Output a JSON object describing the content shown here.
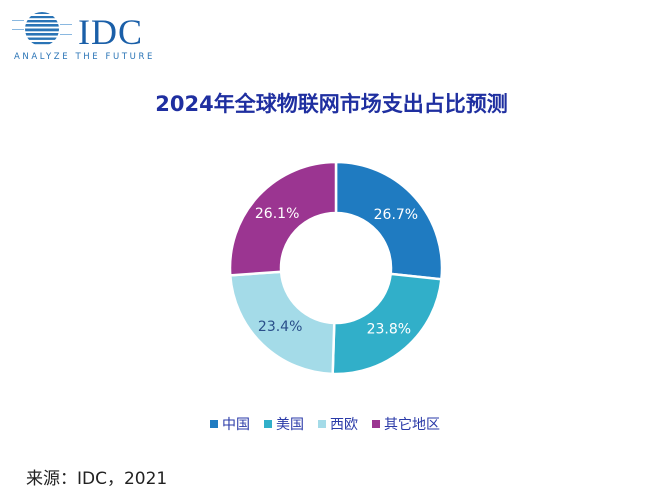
{
  "header": {
    "logo_text": "IDC",
    "logo_tagline": "ANALYZE THE FUTURE"
  },
  "title": "2024年全球物联网市场支出占比预测",
  "legend": [
    {
      "label": "中国",
      "color": "#1f7bc1"
    },
    {
      "label": "美国",
      "color": "#31afc9"
    },
    {
      "label": "西欧",
      "color": "#a4dbe8"
    },
    {
      "label": "其它地区",
      "color": "#9b3591"
    }
  ],
  "source": "来源：IDC，2021",
  "chart_data": {
    "type": "pie",
    "subtype": "donut",
    "title": "2024年全球物联网市场支出占比预测",
    "categories": [
      "中国",
      "美国",
      "西欧",
      "其它地区"
    ],
    "values": [
      26.7,
      23.8,
      23.4,
      26.1
    ],
    "labels": [
      "26.7%",
      "23.8%",
      "23.4%",
      "26.1%"
    ],
    "colors": [
      "#1f7bc1",
      "#31afc9",
      "#a4dbe8",
      "#9b3591"
    ],
    "legend_position": "bottom"
  }
}
